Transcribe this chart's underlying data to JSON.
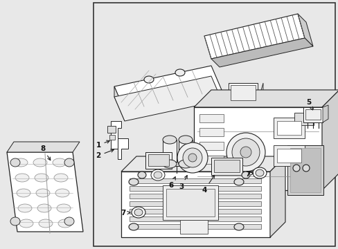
{
  "bg_color": "#e8e8e8",
  "diagram_bg": "#e8e8e8",
  "inner_bg": "#e8e8e8",
  "border_color": "#222222",
  "line_color": "#222222",
  "label_color": "#111111",
  "white": "#ffffff",
  "light_gray": "#cccccc",
  "mid_gray": "#999999"
}
